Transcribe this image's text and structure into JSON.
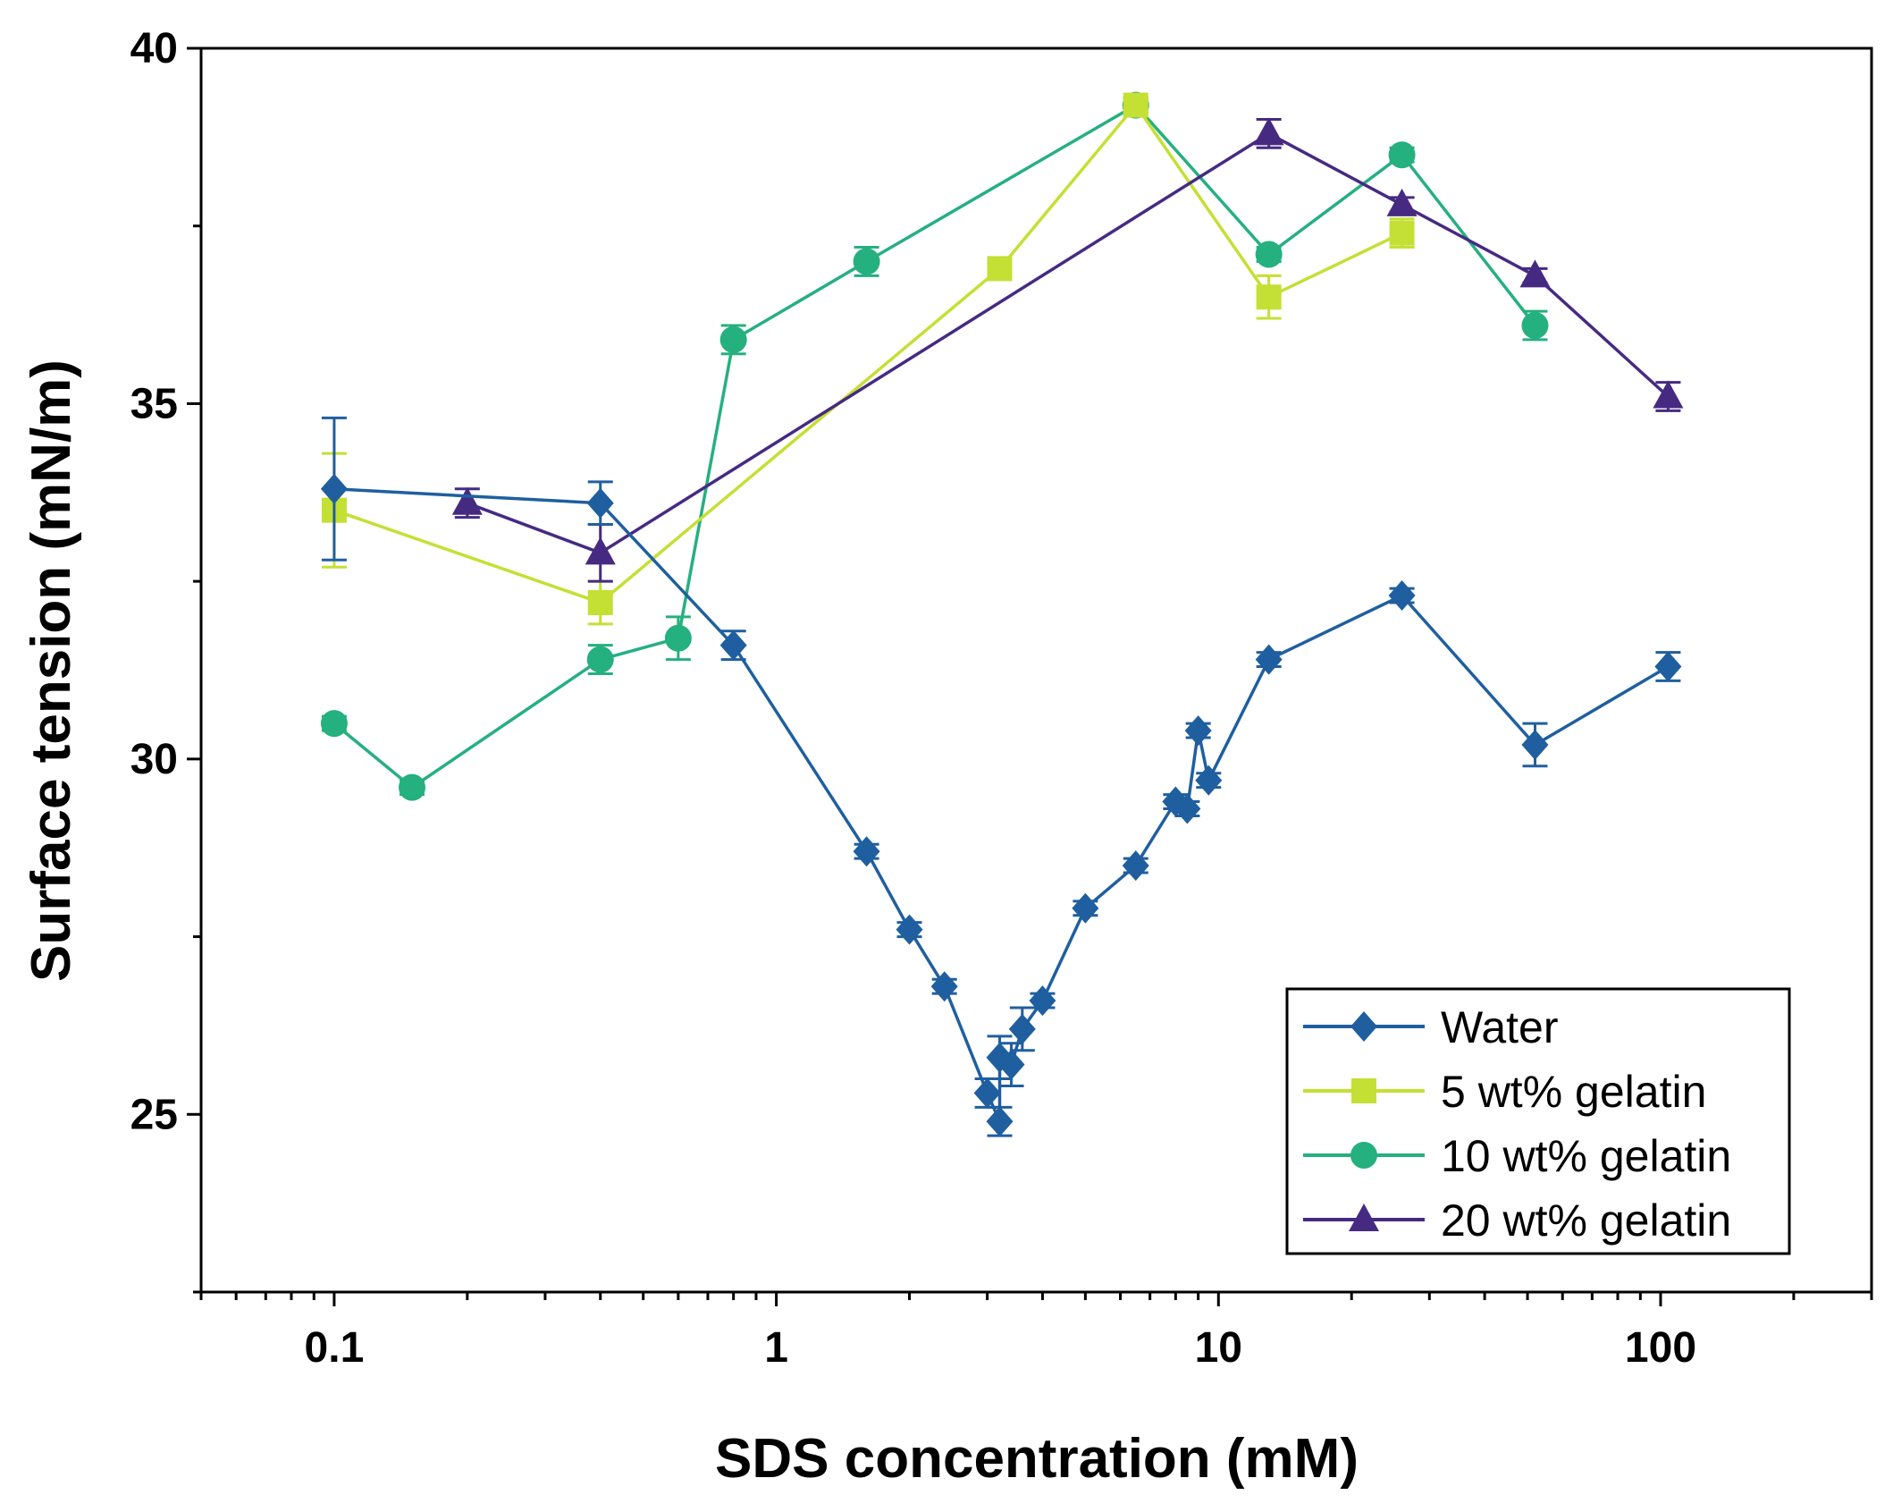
{
  "chart_data": {
    "type": "line",
    "title": "",
    "xlabel": "SDS concentration (mM)",
    "ylabel": "Surface tension (mN/m)",
    "xscale": "log",
    "xlim": [
      0.05,
      300
    ],
    "ylim": [
      22.5,
      40
    ],
    "x_ticks": [
      {
        "value": 0.1,
        "label": "0.1"
      },
      {
        "value": 1,
        "label": "1"
      },
      {
        "value": 10,
        "label": "10"
      },
      {
        "value": 100,
        "label": "100"
      }
    ],
    "y_ticks": [
      {
        "value": 25,
        "label": "25"
      },
      {
        "value": 30,
        "label": "30"
      },
      {
        "value": 35,
        "label": "35"
      },
      {
        "value": 40,
        "label": "40"
      }
    ],
    "legend_position": "bottom-right",
    "series": [
      {
        "name": "Water",
        "color": "#1f5fa0",
        "marker": "diamond",
        "points": [
          {
            "x": 0.1,
            "y": 33.8,
            "err": 1.0
          },
          {
            "x": 0.4,
            "y": 33.6,
            "err": 0.3
          },
          {
            "x": 0.8,
            "y": 31.6,
            "err": 0.2
          },
          {
            "x": 1.6,
            "y": 28.7,
            "err": 0.1
          },
          {
            "x": 2.0,
            "y": 27.6,
            "err": 0.1
          },
          {
            "x": 2.4,
            "y": 26.8,
            "err": 0.1
          },
          {
            "x": 3.0,
            "y": 25.3,
            "err": 0.2
          },
          {
            "x": 3.2,
            "y": 24.9,
            "err": 0.2
          },
          {
            "x": 3.2,
            "y": 25.8,
            "err": 0.3
          },
          {
            "x": 3.4,
            "y": 25.7,
            "err": 0.3
          },
          {
            "x": 3.6,
            "y": 26.2,
            "err": 0.3
          },
          {
            "x": 4.0,
            "y": 26.6,
            "err": 0.1
          },
          {
            "x": 5.0,
            "y": 27.9,
            "err": 0.1
          },
          {
            "x": 6.5,
            "y": 28.5,
            "err": 0.1
          },
          {
            "x": 8.0,
            "y": 29.4,
            "err": 0.1
          },
          {
            "x": 8.5,
            "y": 29.3,
            "err": 0.1
          },
          {
            "x": 9.0,
            "y": 30.4,
            "err": 0.1
          },
          {
            "x": 9.5,
            "y": 29.7,
            "err": 0.1
          },
          {
            "x": 13.0,
            "y": 31.4,
            "err": 0.1
          },
          {
            "x": 26.0,
            "y": 32.3,
            "err": 0.1
          },
          {
            "x": 52.0,
            "y": 30.2,
            "err": 0.3
          },
          {
            "x": 104.0,
            "y": 31.3,
            "err": 0.2
          }
        ]
      },
      {
        "name": "5 wt% gelatin",
        "color": "#c4e034",
        "marker": "square",
        "points": [
          {
            "x": 0.1,
            "y": 33.5,
            "err": 0.8
          },
          {
            "x": 0.4,
            "y": 32.2,
            "err": 0.3
          },
          {
            "x": 3.2,
            "y": 36.9,
            "err": 0.1
          },
          {
            "x": 6.5,
            "y": 39.2,
            "err": 0.1
          },
          {
            "x": 13.0,
            "y": 36.5,
            "err": 0.3
          },
          {
            "x": 26.0,
            "y": 37.4,
            "err": 0.2
          }
        ]
      },
      {
        "name": "10 wt% gelatin",
        "color": "#25b07f",
        "marker": "circle",
        "points": [
          {
            "x": 0.1,
            "y": 30.5,
            "err": 0.1
          },
          {
            "x": 0.15,
            "y": 29.6,
            "err": 0.1
          },
          {
            "x": 0.4,
            "y": 31.4,
            "err": 0.2
          },
          {
            "x": 0.6,
            "y": 31.7,
            "err": 0.3
          },
          {
            "x": 0.8,
            "y": 35.9,
            "err": 0.2
          },
          {
            "x": 1.6,
            "y": 37.0,
            "err": 0.2
          },
          {
            "x": 6.5,
            "y": 39.2,
            "err": 0.1
          },
          {
            "x": 13.0,
            "y": 37.1,
            "err": 0.1
          },
          {
            "x": 26.0,
            "y": 38.5,
            "err": 0.1
          },
          {
            "x": 52.0,
            "y": 36.1,
            "err": 0.2
          }
        ]
      },
      {
        "name": "20 wt% gelatin",
        "color": "#462a82",
        "marker": "triangle",
        "points": [
          {
            "x": 0.2,
            "y": 33.6,
            "err": 0.2
          },
          {
            "x": 0.4,
            "y": 32.9,
            "err": 0.4
          },
          {
            "x": 13.0,
            "y": 38.8,
            "err": 0.2
          },
          {
            "x": 26.0,
            "y": 37.8,
            "err": 0.1
          },
          {
            "x": 52.0,
            "y": 36.8,
            "err": 0.1
          },
          {
            "x": 104.0,
            "y": 35.1,
            "err": 0.2
          }
        ]
      }
    ]
  }
}
